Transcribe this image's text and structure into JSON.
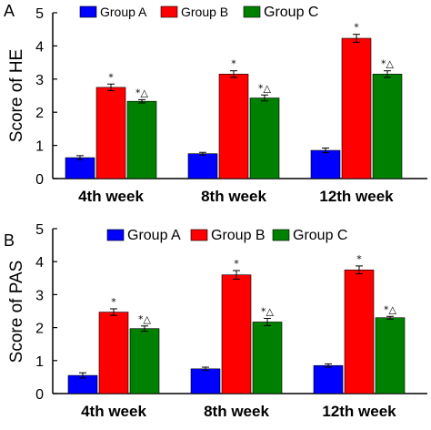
{
  "chart_data": [
    {
      "type": "bar",
      "panel_label": "A",
      "title": "",
      "xlabel": "",
      "ylabel": "Score of HE",
      "ylim": [
        0,
        5
      ],
      "yticks": [
        "0",
        "1",
        "2",
        "3",
        "4",
        "5"
      ],
      "categories": [
        "4th week",
        "8th week",
        "12th week"
      ],
      "legend": {
        "placement": "top",
        "entries": [
          "Group A",
          "Group B",
          "Group C"
        ]
      },
      "series": [
        {
          "name": "Group A",
          "color": "#0000ff",
          "values": [
            0.63,
            0.75,
            0.85
          ],
          "errors": [
            0.06,
            0.04,
            0.07
          ],
          "annotations": [
            "",
            "",
            ""
          ]
        },
        {
          "name": "Group B",
          "color": "#ff0000",
          "values": [
            2.75,
            3.15,
            4.23
          ],
          "errors": [
            0.1,
            0.1,
            0.12
          ],
          "annotations": [
            "*",
            "*",
            "*"
          ]
        },
        {
          "name": "Group C",
          "color": "#008000",
          "values": [
            2.33,
            2.43,
            3.15
          ],
          "errors": [
            0.05,
            0.09,
            0.1
          ],
          "annotations": [
            "*△",
            "*△",
            "*△"
          ]
        }
      ],
      "grid": false
    },
    {
      "type": "bar",
      "panel_label": "B",
      "title": "",
      "xlabel": "",
      "ylabel": "Score of PAS",
      "ylim": [
        0,
        5
      ],
      "yticks": [
        "0",
        "1",
        "2",
        "3",
        "4",
        "5"
      ],
      "categories": [
        "4th week",
        "8th week",
        "12th week"
      ],
      "legend": {
        "placement": "top",
        "entries": [
          "Group A",
          "Group B",
          "Group C"
        ]
      },
      "series": [
        {
          "name": "Group A",
          "color": "#0000ff",
          "values": [
            0.55,
            0.75,
            0.85
          ],
          "errors": [
            0.08,
            0.05,
            0.05
          ],
          "annotations": [
            "",
            "",
            ""
          ]
        },
        {
          "name": "Group B",
          "color": "#ff0000",
          "values": [
            2.47,
            3.6,
            3.75
          ],
          "errors": [
            0.1,
            0.13,
            0.12
          ],
          "annotations": [
            "*",
            "*",
            "*"
          ]
        },
        {
          "name": "Group C",
          "color": "#008000",
          "values": [
            1.97,
            2.17,
            2.3
          ],
          "errors": [
            0.08,
            0.11,
            0.04
          ],
          "annotations": [
            "*△",
            "*△",
            "*△"
          ]
        }
      ],
      "grid": false
    }
  ]
}
